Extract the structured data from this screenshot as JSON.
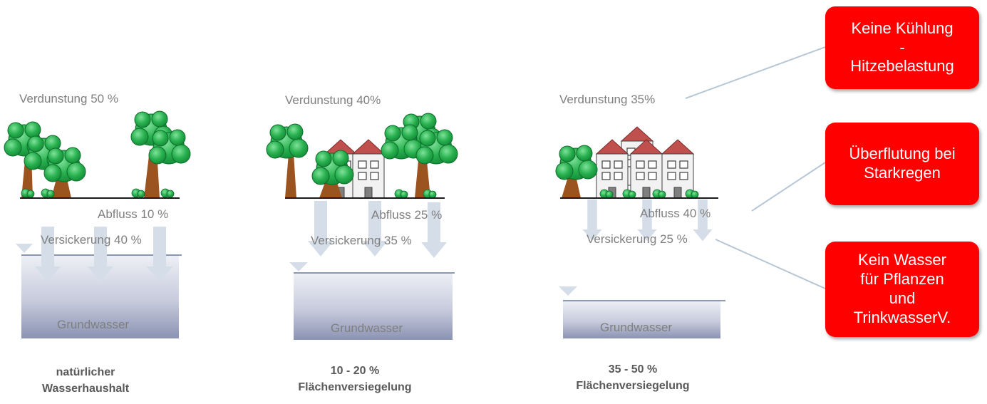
{
  "scenes": [
    {
      "verdunstung": "Verdunstung 50 %",
      "abfluss": "Abfluss 10 %",
      "versickerung": "Versickerung 40 %",
      "grundwasser": "Grundwasser",
      "caption": [
        "natürlicher",
        "Wasserhaushalt"
      ]
    },
    {
      "verdunstung": "Verdunstung 40%",
      "abfluss": "Abfluss 25 %",
      "versickerung": "Versickerung 35 %",
      "grundwasser": "Grundwasser",
      "caption": [
        "10 - 20 %",
        "Flächenversiegelung"
      ]
    },
    {
      "verdunstung": "Verdunstung 35%",
      "abfluss": "Abfluss 40 %",
      "versickerung": "Versickerung 25 %",
      "grundwasser": "Grundwasser",
      "caption": [
        "35 - 50 %",
        "Flächenversiegelung"
      ]
    }
  ],
  "callouts": [
    {
      "lines": [
        "Keine Kühlung",
        "-",
        "Hitzebelastung"
      ]
    },
    {
      "lines": [
        "Überflutung bei",
        "Starkregen"
      ]
    },
    {
      "lines": [
        "Kein Wasser",
        "für Pflanzen",
        "und",
        "TrinkwasserV."
      ]
    }
  ],
  "colors": {
    "callout": "#ff0000",
    "text": "#7f7f7f",
    "arrow": "#d5dee8",
    "foliage": "#22a84a",
    "trunk": "#9b5320",
    "roof": "#c0504d",
    "groundwater_top": "#eef0f6",
    "groundwater_bottom": "#8b93b3"
  }
}
